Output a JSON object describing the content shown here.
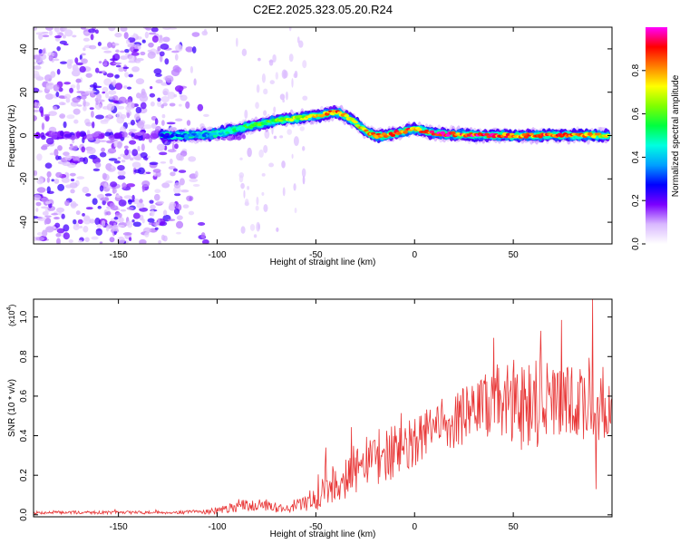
{
  "figure_title": "C2E2.2025.323.05.20.R24",
  "chart_data": [
    {
      "type": "heatmap",
      "title": "C2E2.2025.323.05.20.R24",
      "xlabel": "Height of straight line (km)",
      "ylabel": "Frequency (Hz)",
      "xlim": [
        -193,
        100
      ],
      "ylim": [
        -50,
        50
      ],
      "x_ticks": [
        -150,
        -100,
        -50,
        0,
        50
      ],
      "y_ticks": [
        -40,
        -20,
        0,
        20,
        40
      ],
      "colorbar": {
        "label": "Normalized spectral amplitude",
        "range": [
          0,
          1
        ],
        "ticks": [
          0.0,
          0.2,
          0.4,
          0.6,
          0.8
        ],
        "tick_labels": [
          "0.0",
          "0.2",
          "0.4",
          "0.6",
          "0.8"
        ],
        "colormap": [
          "#ffffff",
          "#d9b8ff",
          "#7b00ff",
          "#0000ff",
          "#00a0ff",
          "#00ffe0",
          "#00ff40",
          "#80ff00",
          "#ffff00",
          "#ff8000",
          "#ff0000",
          "#ff00ff"
        ]
      },
      "ridge": {
        "description": "Dominant frequency ridge vs height",
        "x": [
          -128,
          -120,
          -110,
          -100,
          -90,
          -80,
          -70,
          -60,
          -50,
          -45,
          -40,
          -35,
          -30,
          -25,
          -20,
          -15,
          -10,
          -5,
          0,
          5,
          10,
          20,
          30,
          40,
          50,
          60,
          70,
          80,
          90,
          98
        ],
        "frequency": [
          0,
          0,
          0,
          1,
          3,
          5,
          7,
          8,
          9,
          10,
          11,
          9,
          6,
          2,
          0,
          0,
          1,
          2,
          3,
          2,
          1,
          0.5,
          0,
          0,
          0,
          0,
          0,
          0,
          0,
          0
        ],
        "amplitude": [
          0.25,
          0.3,
          0.35,
          0.4,
          0.5,
          0.55,
          0.6,
          0.65,
          0.7,
          0.75,
          0.8,
          0.75,
          0.7,
          0.75,
          0.8,
          0.85,
          0.8,
          0.85,
          0.8,
          0.85,
          0.9,
          0.85,
          0.9,
          0.85,
          0.85,
          0.8,
          0.85,
          0.8,
          0.75,
          0.7
        ]
      },
      "noise_region_x": [
        -193,
        -105
      ],
      "noise_patches_x": [
        -90,
        -55
      ]
    },
    {
      "type": "line",
      "title": "",
      "xlabel": "Height of straight line (km)",
      "ylabel": "SNR (10 * v/v)",
      "y_scale_label": "(x10",
      "y_scale_exponent": "4",
      "y_scale_suffix": ")",
      "xlim": [
        -193,
        100
      ],
      "ylim": [
        -0.01,
        1.09
      ],
      "x_ticks": [
        -150,
        -100,
        -50,
        0,
        50
      ],
      "y_ticks": [
        0.0,
        0.2,
        0.4,
        0.6,
        0.8,
        1.0
      ],
      "y_tick_labels": [
        "0.0",
        "0.2",
        "0.4",
        "0.6",
        "0.8",
        "1.0"
      ],
      "series": [
        {
          "name": "SNR",
          "color": "#e83535",
          "x": [
            -193,
            -180,
            -160,
            -140,
            -120,
            -110,
            -100,
            -95,
            -90,
            -85,
            -80,
            -75,
            -70,
            -65,
            -60,
            -55,
            -50,
            -45,
            -40,
            -35,
            -30,
            -25,
            -20,
            -15,
            -10,
            -5,
            0,
            5,
            10,
            15,
            20,
            25,
            30,
            35,
            40,
            45,
            50,
            55,
            60,
            65,
            70,
            75,
            80,
            85,
            90,
            95,
            99
          ],
          "mean": [
            0.01,
            0.012,
            0.012,
            0.012,
            0.012,
            0.015,
            0.02,
            0.03,
            0.04,
            0.05,
            0.05,
            0.05,
            0.04,
            0.03,
            0.04,
            0.06,
            0.09,
            0.13,
            0.17,
            0.2,
            0.23,
            0.26,
            0.29,
            0.3,
            0.32,
            0.34,
            0.36,
            0.4,
            0.44,
            0.46,
            0.48,
            0.5,
            0.52,
            0.55,
            0.56,
            0.57,
            0.57,
            0.56,
            0.57,
            0.58,
            0.57,
            0.56,
            0.57,
            0.56,
            0.55,
            0.55,
            0.55
          ],
          "spread": [
            0.008,
            0.008,
            0.008,
            0.008,
            0.008,
            0.01,
            0.02,
            0.02,
            0.03,
            0.03,
            0.03,
            0.03,
            0.03,
            0.02,
            0.03,
            0.04,
            0.07,
            0.1,
            0.12,
            0.12,
            0.13,
            0.13,
            0.14,
            0.14,
            0.14,
            0.13,
            0.13,
            0.13,
            0.13,
            0.14,
            0.15,
            0.15,
            0.16,
            0.17,
            0.18,
            0.2,
            0.22,
            0.24,
            0.24,
            0.22,
            0.22,
            0.2,
            0.2,
            0.2,
            0.2,
            0.2,
            0.2
          ],
          "spikes": [
            {
              "x": 90,
              "y": 1.09
            },
            {
              "x": 64,
              "y": 0.93
            },
            {
              "x": 92,
              "y": 0.13
            }
          ]
        }
      ]
    }
  ]
}
